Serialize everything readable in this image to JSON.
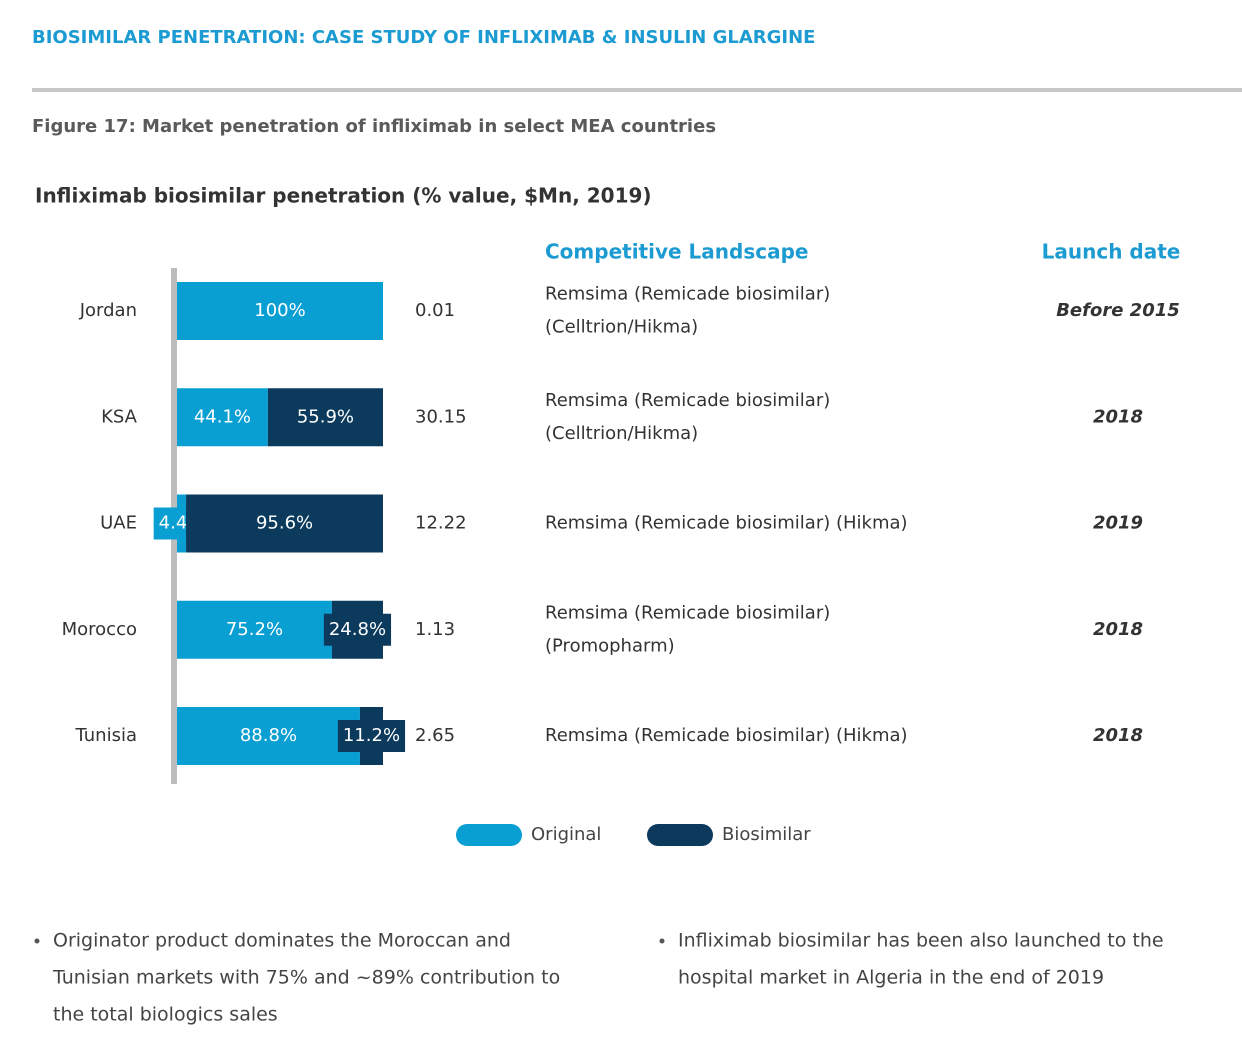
{
  "header": {
    "title": "BIOSIMILAR PENETRATION: CASE STUDY OF INFLIXIMAB & INSULIN GLARGINE"
  },
  "figure": {
    "caption": "Figure 17: Market penetration of infliximab in select MEA countries"
  },
  "chart_data": {
    "type": "bar",
    "orientation": "horizontal",
    "stacked": true,
    "title": "Infliximab biosimilar penetration (% value, $Mn, 2019)",
    "categories": [
      "Jordan",
      "KSA",
      "UAE",
      "Morocco",
      "Tunisia"
    ],
    "xlim": [
      0,
      100
    ],
    "series": [
      {
        "name": "Original",
        "color": "#0a9fd3",
        "values": [
          100,
          44.1,
          4.4,
          75.2,
          88.8
        ],
        "value_labels": [
          "100%",
          "44.1%",
          "4.4%",
          "75.2%",
          "88.8%"
        ]
      },
      {
        "name": "Biosimilar",
        "color": "#0b3a5d",
        "values": [
          0,
          55.9,
          95.6,
          24.8,
          11.2
        ],
        "value_labels": [
          null,
          "55.9%",
          "95.6%",
          "24.8%",
          "11.2%"
        ]
      }
    ],
    "market_values": [
      0.01,
      30.15,
      12.22,
      1.13,
      2.65
    ],
    "legend": "bottom"
  },
  "table": {
    "headers": [
      "Competitive Landscape",
      "Launch date"
    ],
    "landscape": [
      [
        "Remsima (Remicade biosimilar)",
        "(Celltrion/Hikma)"
      ],
      [
        "Remsima (Remicade biosimilar)",
        "(Celltrion/Hikma)"
      ],
      [
        "Remsima (Remicade biosimilar) (Hikma)"
      ],
      [
        "Remsima (Remicade biosimilar)",
        "(Promopharm)"
      ],
      [
        "Remsima (Remicade biosimilar) (Hikma)"
      ]
    ],
    "launch": [
      "Before 2015",
      "2018",
      "2019",
      "2018",
      "2018"
    ]
  },
  "notes": [
    [
      "Originator product dominates the Moroccan and",
      "Tunisian markets with 75% and ~89% contribution to",
      "the total biologics sales"
    ],
    [
      "Infliximab biosimilar has been also launched to the",
      "hospital market in Algeria in the end of 2019"
    ]
  ]
}
